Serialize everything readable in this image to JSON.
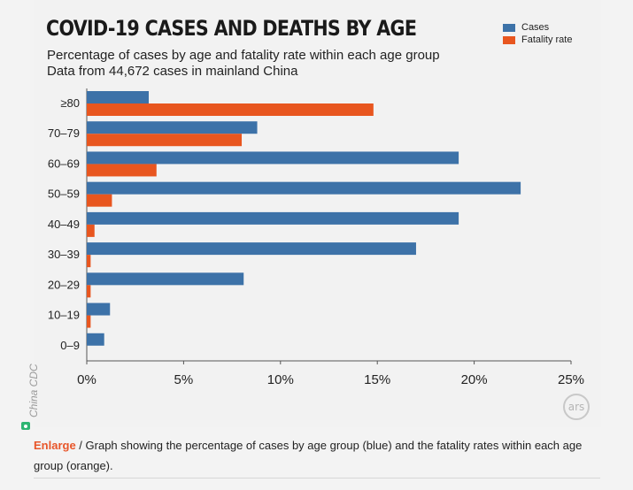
{
  "chart_data": {
    "type": "bar",
    "orientation": "horizontal",
    "title": "COVID-19 CASES AND DEATHS BY AGE",
    "subtitle": "Percentage of cases by age and fatality rate within each age group",
    "subtitle2": "Data from 44,672 cases in mainland China",
    "categories": [
      "≥80",
      "70–79",
      "60–69",
      "50–59",
      "40–49",
      "30–39",
      "20–29",
      "10–19",
      "0–9"
    ],
    "series": [
      {
        "name": "Cases",
        "color": "#3d72a8",
        "values": [
          3.2,
          8.8,
          19.2,
          22.4,
          19.2,
          17.0,
          8.1,
          1.2,
          0.9
        ]
      },
      {
        "name": "Fatality rate",
        "color": "#e8561f",
        "values": [
          14.8,
          8.0,
          3.6,
          1.3,
          0.4,
          0.2,
          0.2,
          0.2,
          0.0
        ]
      }
    ],
    "xlim": [
      0,
      25
    ],
    "x_ticks": [
      "0%",
      "5%",
      "10%",
      "15%",
      "20%",
      "25%"
    ],
    "grid": false,
    "legend_position": "top-right"
  },
  "source_credit": "China CDC",
  "logo_text": "ars",
  "caption": {
    "link": "Enlarge",
    "separator": " / ",
    "text": "Graph showing the percentage of cases by age group (blue) and the fatality rates within each age group (orange)."
  }
}
